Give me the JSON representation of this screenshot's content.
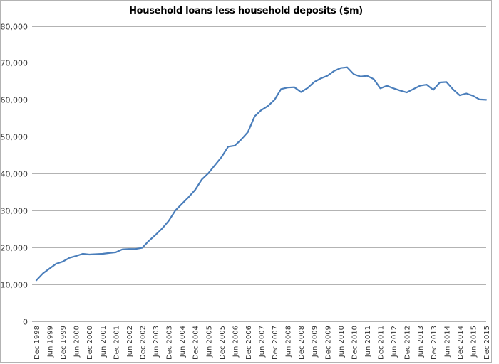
{
  "chart_data": {
    "type": "line",
    "title": "Household loans less household deposits ($m)",
    "xlabel": "",
    "ylabel": "",
    "ylim": [
      0,
      80000
    ],
    "yticks": [
      0,
      10000,
      20000,
      30000,
      40000,
      50000,
      60000,
      70000,
      80000
    ],
    "ytick_labels": [
      "0",
      "10,000",
      "20,000",
      "30,000",
      "40,000",
      "50,000",
      "60,000",
      "70,000",
      "80,000"
    ],
    "grid": true,
    "legend": null,
    "x_tick_labels": [
      "Dec 1998",
      "Jun 1999",
      "Dec 1999",
      "Jun 2000",
      "Dec 2000",
      "Jun 2001",
      "Dec 2001",
      "Jun 2002",
      "Dec 2002",
      "Jun 2003",
      "Dec 2003",
      "Jun 2004",
      "Dec 2004",
      "Jun 2005",
      "Dec 2005",
      "Jun 2006",
      "Dec 2006",
      "Jun 2007",
      "Dec 2007",
      "Jun 2008",
      "Dec 2008",
      "Jun 2009",
      "Dec 2009",
      "Jun 2010",
      "Dec 2010",
      "Jun 2011",
      "Dec 2011",
      "Jun 2012",
      "Dec 2012",
      "Jun 2013",
      "Dec 2013",
      "Jun 2014",
      "Dec 2014",
      "Jun 2015",
      "Dec 2015"
    ],
    "x": [
      "Dec 1998",
      "Mar 1999",
      "Jun 1999",
      "Sep 1999",
      "Dec 1999",
      "Mar 2000",
      "Jun 2000",
      "Sep 2000",
      "Dec 2000",
      "Mar 2001",
      "Jun 2001",
      "Sep 2001",
      "Dec 2001",
      "Mar 2002",
      "Jun 2002",
      "Sep 2002",
      "Dec 2002",
      "Mar 2003",
      "Jun 2003",
      "Sep 2003",
      "Dec 2003",
      "Mar 2004",
      "Jun 2004",
      "Sep 2004",
      "Dec 2004",
      "Mar 2005",
      "Jun 2005",
      "Sep 2005",
      "Dec 2005",
      "Mar 2006",
      "Jun 2006",
      "Sep 2006",
      "Dec 2006",
      "Mar 2007",
      "Jun 2007",
      "Sep 2007",
      "Dec 2007",
      "Mar 2008",
      "Jun 2008",
      "Sep 2008",
      "Dec 2008",
      "Mar 2009",
      "Jun 2009",
      "Sep 2009",
      "Dec 2009",
      "Mar 2010",
      "Jun 2010",
      "Sep 2010",
      "Dec 2010",
      "Mar 2011",
      "Jun 2011",
      "Sep 2011",
      "Dec 2011",
      "Mar 2012",
      "Jun 2012",
      "Sep 2012",
      "Dec 2012",
      "Mar 2013",
      "Jun 2013",
      "Sep 2013",
      "Dec 2013",
      "Mar 2014",
      "Jun 2014",
      "Sep 2014",
      "Dec 2014",
      "Mar 2015",
      "Jun 2015",
      "Sep 2015",
      "Dec 2015"
    ],
    "series": [
      {
        "name": "Household loans less household deposits",
        "color": "#4a7ebb",
        "values": [
          11100,
          13000,
          14300,
          15600,
          16200,
          17200,
          17700,
          18300,
          18100,
          18200,
          18300,
          18500,
          18700,
          19500,
          19600,
          19600,
          19900,
          21800,
          23400,
          25100,
          27200,
          30000,
          31800,
          33600,
          35600,
          38400,
          40100,
          42300,
          44500,
          47300,
          47600,
          49300,
          51300,
          55500,
          57200,
          58300,
          60000,
          62900,
          63300,
          63400,
          62100,
          63200,
          64800,
          65800,
          66500,
          67800,
          68600,
          68800,
          66900,
          66300,
          66500,
          65600,
          63100,
          63800,
          63100,
          62500,
          62000,
          62900,
          63800,
          64100,
          62700,
          64700,
          64800,
          62800,
          61200,
          61700,
          61100,
          60100,
          60000
        ]
      }
    ]
  },
  "colors": {
    "line": "#4a7ebb",
    "grid": "#b3b3b3",
    "border": "#b3b3b3"
  }
}
